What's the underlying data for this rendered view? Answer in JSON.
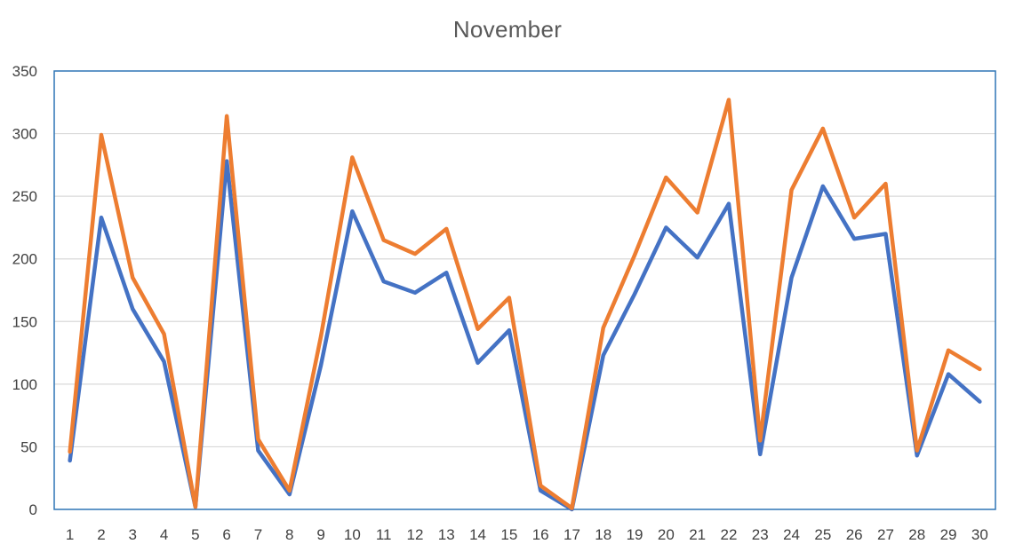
{
  "chart_data": {
    "type": "line",
    "title": "November",
    "xlabel": "",
    "ylabel": "",
    "categories": [
      "1",
      "2",
      "3",
      "4",
      "5",
      "6",
      "7",
      "8",
      "9",
      "10",
      "11",
      "12",
      "13",
      "14",
      "15",
      "16",
      "17",
      "18",
      "19",
      "20",
      "21",
      "22",
      "23",
      "24",
      "25",
      "26",
      "27",
      "28",
      "29",
      "30"
    ],
    "ylim": [
      0,
      350
    ],
    "yticks": [
      0,
      50,
      100,
      150,
      200,
      250,
      300,
      350
    ],
    "grid": true,
    "legend": "none",
    "series": [
      {
        "color": "#4472C4",
        "values": [
          39,
          233,
          160,
          118,
          2,
          278,
          47,
          12,
          115,
          238,
          182,
          173,
          189,
          117,
          143,
          15,
          0,
          123,
          172,
          225,
          201,
          244,
          44,
          185,
          258,
          216,
          220,
          43,
          108,
          86
        ]
      },
      {
        "color": "#ED7D31",
        "values": [
          46,
          299,
          185,
          140,
          2,
          314,
          56,
          15,
          138,
          281,
          215,
          204,
          224,
          144,
          169,
          19,
          1,
          145,
          203,
          265,
          237,
          327,
          55,
          255,
          304,
          233,
          260,
          47,
          127,
          112
        ]
      }
    ]
  }
}
